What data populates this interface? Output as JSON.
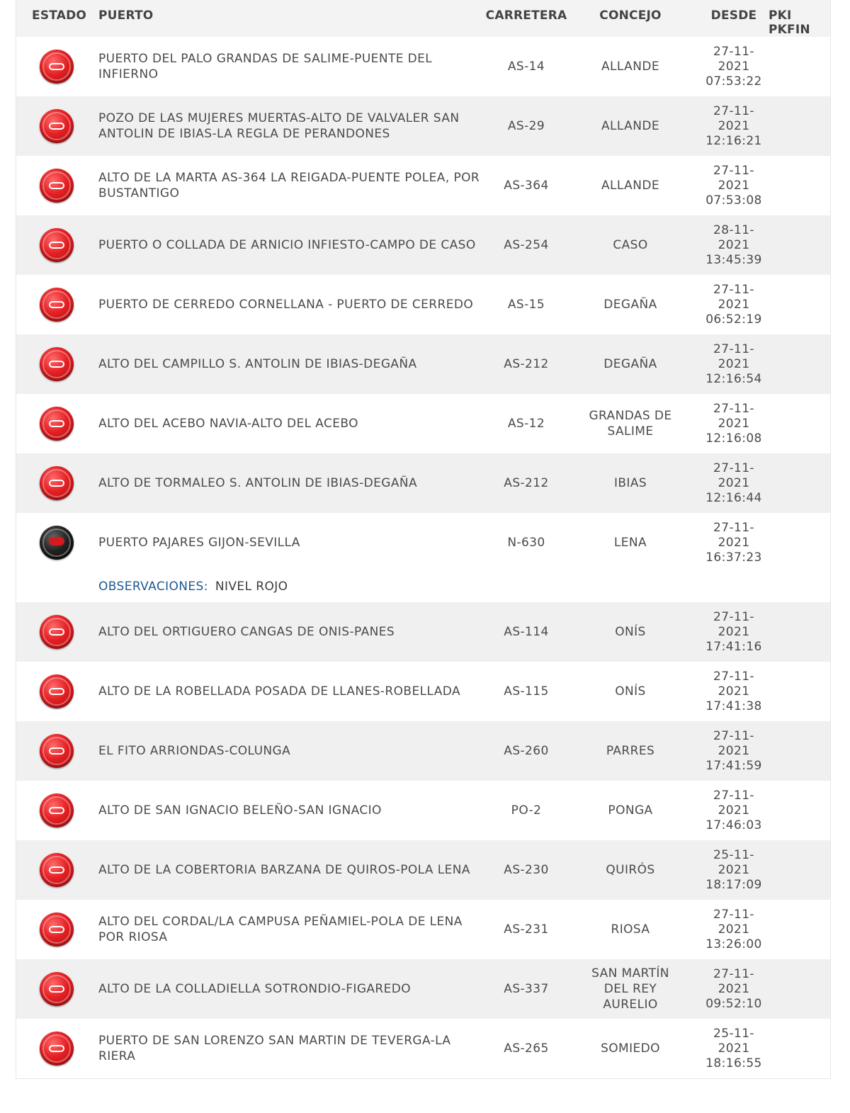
{
  "header": {
    "estado": "ESTADO",
    "puerto": "PUERTO",
    "carretera": "CARRETERA",
    "concejo": "CONCEJO",
    "desde": "DESDE",
    "pki": "PKI PKFIN"
  },
  "colors": {
    "status_red": "#e41f23",
    "status_black": "#111111",
    "observaciones_label": "#1d5a91",
    "row_alt": "#f0f0f0"
  },
  "rows": [
    {
      "estado_icon": "closed-red-icon",
      "puerto": "PUERTO DEL PALO GRANDAS DE SALIME-PUENTE DEL INFIERNO",
      "carretera": "AS-14",
      "concejo": "ALLANDE",
      "desde_date": "27-11-",
      "desde_year": "2021",
      "desde_time": "07:53:22"
    },
    {
      "estado_icon": "closed-red-icon",
      "puerto": "POZO DE LAS MUJERES MUERTAS-ALTO DE VALVALER SAN ANTOLIN DE IBIAS-LA REGLA DE PERANDONES",
      "carretera": "AS-29",
      "concejo": "ALLANDE",
      "desde_date": "27-11-",
      "desde_year": "2021",
      "desde_time": "12:16:21"
    },
    {
      "estado_icon": "closed-red-icon",
      "puerto": "ALTO DE LA MARTA AS-364 LA REIGADA-PUENTE POLEA, POR BUSTANTIGO",
      "carretera": "AS-364",
      "concejo": "ALLANDE",
      "desde_date": "27-11-",
      "desde_year": "2021",
      "desde_time": "07:53:08"
    },
    {
      "estado_icon": "closed-red-icon",
      "puerto": "PUERTO O COLLADA DE ARNICIO INFIESTO-CAMPO DE CASO",
      "carretera": "AS-254",
      "concejo": "CASO",
      "desde_date": "28-11-",
      "desde_year": "2021",
      "desde_time": "13:45:39"
    },
    {
      "estado_icon": "closed-red-icon",
      "puerto": "PUERTO DE CERREDO CORNELLANA - PUERTO DE CERREDO",
      "carretera": "AS-15",
      "concejo": "DEGAÑA",
      "desde_date": "27-11-",
      "desde_year": "2021",
      "desde_time": "06:52:19"
    },
    {
      "estado_icon": "closed-red-icon",
      "puerto": "ALTO DEL CAMPILLO S. ANTOLIN DE IBIAS-DEGAÑA",
      "carretera": "AS-212",
      "concejo": "DEGAÑA",
      "desde_date": "27-11-",
      "desde_year": "2021",
      "desde_time": "12:16:54"
    },
    {
      "estado_icon": "closed-red-icon",
      "puerto": "ALTO DEL ACEBO NAVIA-ALTO DEL ACEBO",
      "carretera": "AS-12",
      "concejo": "GRANDAS DE SALIME",
      "desde_date": "27-11-",
      "desde_year": "2021",
      "desde_time": "12:16:08"
    },
    {
      "estado_icon": "closed-red-icon",
      "puerto": "ALTO DE TORMALEO S. ANTOLIN DE IBIAS-DEGAÑA",
      "carretera": "AS-212",
      "concejo": "IBIAS",
      "desde_date": "27-11-",
      "desde_year": "2021",
      "desde_time": "12:16:44"
    },
    {
      "estado_icon": "black-status-icon",
      "puerto": "PUERTO PAJARES GIJON-SEVILLA",
      "carretera": "N-630",
      "concejo": "LENA",
      "desde_date": "27-11-",
      "desde_year": "2021",
      "desde_time": "16:37:23",
      "obs_label": "OBSERVACIONES:",
      "obs_value": "NIVEL ROJO"
    },
    {
      "estado_icon": "closed-red-icon",
      "puerto": "ALTO DEL ORTIGUERO CANGAS DE ONIS-PANES",
      "carretera": "AS-114",
      "concejo": "ONÍS",
      "desde_date": "27-11-",
      "desde_year": "2021",
      "desde_time": "17:41:16"
    },
    {
      "estado_icon": "closed-red-icon",
      "puerto": "ALTO DE LA ROBELLADA POSADA DE LLANES-ROBELLADA",
      "carretera": "AS-115",
      "concejo": "ONÍS",
      "desde_date": "27-11-",
      "desde_year": "2021",
      "desde_time": "17:41:38"
    },
    {
      "estado_icon": "closed-red-icon",
      "puerto": "EL FITO ARRIONDAS-COLUNGA",
      "carretera": "AS-260",
      "concejo": "PARRES",
      "desde_date": "27-11-",
      "desde_year": "2021",
      "desde_time": "17:41:59"
    },
    {
      "estado_icon": "closed-red-icon",
      "puerto": "ALTO DE SAN IGNACIO BELEÑO-SAN IGNACIO",
      "carretera": "PO-2",
      "concejo": "PONGA",
      "desde_date": "27-11-",
      "desde_year": "2021",
      "desde_time": "17:46:03"
    },
    {
      "estado_icon": "closed-red-icon",
      "puerto": "ALTO DE LA COBERTORIA BARZANA DE QUIROS-POLA LENA",
      "carretera": "AS-230",
      "concejo": "QUIRÓS",
      "desde_date": "25-11-",
      "desde_year": "2021",
      "desde_time": "18:17:09"
    },
    {
      "estado_icon": "closed-red-icon",
      "puerto": "ALTO DEL CORDAL/LA CAMPUSA PEÑAMIEL-POLA DE LENA POR RIOSA",
      "carretera": "AS-231",
      "concejo": "RIOSA",
      "desde_date": "27-11-",
      "desde_year": "2021",
      "desde_time": "13:26:00"
    },
    {
      "estado_icon": "closed-red-icon",
      "puerto": "ALTO DE LA COLLADIELLA SOTRONDIO-FIGAREDO",
      "carretera": "AS-337",
      "concejo": "SAN MARTÍN DEL REY AURELIO",
      "desde_date": "27-11-",
      "desde_year": "2021",
      "desde_time": "09:52:10"
    },
    {
      "estado_icon": "closed-red-icon",
      "puerto": "PUERTO DE SAN LORENZO SAN MARTIN DE TEVERGA-LA RIERA",
      "carretera": "AS-265",
      "concejo": "SOMIEDO",
      "desde_date": "25-11-",
      "desde_year": "2021",
      "desde_time": "18:16:55"
    }
  ]
}
